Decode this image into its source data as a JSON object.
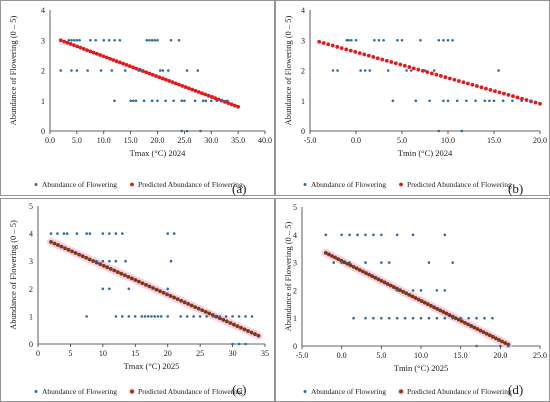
{
  "chart_data": [
    {
      "type": "scatter",
      "panel_label": "(a)",
      "xlabel": "Tmax (°C) 2024",
      "ylabel": "Abundance of Flowering (0 – 5)",
      "xlim": [
        0,
        40
      ],
      "ylim": [
        0,
        4
      ],
      "xticks": [
        "0.0",
        "5.0",
        "10.0",
        "15.0",
        "20.0",
        "25.0",
        "30.0",
        "35.0",
        "40.0"
      ],
      "yticks": [
        "0",
        "1",
        "2",
        "3",
        "4"
      ],
      "legend": [
        "Abundance of Flowering",
        "Predicted Abundance of Flowering"
      ],
      "colors": {
        "observed": "#2e6a9e",
        "predicted": "#e4191c",
        "halo": ""
      },
      "series": [
        {
          "name": "Abundance of Flowering",
          "points": [
            [
              2,
              2
            ],
            [
              3.5,
              3
            ],
            [
              4,
              3
            ],
            [
              4.5,
              3
            ],
            [
              5,
              3
            ],
            [
              5.5,
              3
            ],
            [
              4,
              2
            ],
            [
              5,
              2
            ],
            [
              7,
              2
            ],
            [
              7.5,
              3
            ],
            [
              8.5,
              3
            ],
            [
              9.5,
              2
            ],
            [
              10,
              3
            ],
            [
              11,
              3
            ],
            [
              12,
              3
            ],
            [
              13,
              3
            ],
            [
              11.5,
              2
            ],
            [
              12,
              1
            ],
            [
              14,
              2
            ],
            [
              15,
              1
            ],
            [
              15.5,
              1
            ],
            [
              16,
              1
            ],
            [
              16.5,
              2
            ],
            [
              17,
              2
            ],
            [
              17.5,
              1
            ],
            [
              18,
              3
            ],
            [
              18.5,
              3
            ],
            [
              19,
              3
            ],
            [
              19.5,
              3
            ],
            [
              20,
              3
            ],
            [
              19,
              1
            ],
            [
              20,
              1
            ],
            [
              20.5,
              2
            ],
            [
              21,
              2
            ],
            [
              21.5,
              1
            ],
            [
              22,
              2
            ],
            [
              22.5,
              3
            ],
            [
              23,
              1
            ],
            [
              24,
              3
            ],
            [
              24.5,
              1
            ],
            [
              25,
              1
            ],
            [
              25.5,
              2
            ],
            [
              24.5,
              0
            ],
            [
              25.5,
              0
            ],
            [
              27,
              1
            ],
            [
              27.5,
              2
            ],
            [
              28,
              0
            ],
            [
              28.5,
              1
            ],
            [
              29,
              1
            ],
            [
              30,
              1
            ],
            [
              31,
              1
            ],
            [
              32,
              1
            ],
            [
              33,
              1
            ]
          ]
        },
        {
          "name": "Predicted Abundance of Flowering",
          "x_range": [
            2,
            35
          ],
          "y_range": [
            3.0,
            0.8
          ],
          "n": 55
        }
      ]
    },
    {
      "type": "scatter",
      "panel_label": "(b)",
      "xlabel": "Tmin (°C) 2024",
      "ylabel": "Abundance of Flowering (0 – 5)",
      "xlim": [
        -5,
        20
      ],
      "ylim": [
        0,
        4
      ],
      "xticks": [
        "-5.0",
        "0.0",
        "5.0",
        "10.0",
        "15.0",
        "20.0"
      ],
      "yticks": [
        "0",
        "1",
        "2",
        "3",
        "4"
      ],
      "legend": [
        "Abundance of Flowering",
        "Predicted Abundance of Flowering"
      ],
      "colors": {
        "observed": "#2e6a9e",
        "predicted": "#e4191c",
        "halo": ""
      },
      "series": [
        {
          "name": "Abundance of Flowering",
          "points": [
            [
              -2.5,
              2
            ],
            [
              -2,
              2
            ],
            [
              -1,
              3
            ],
            [
              -0.8,
              3
            ],
            [
              -0.5,
              3
            ],
            [
              0,
              3
            ],
            [
              0.5,
              2
            ],
            [
              1,
              2
            ],
            [
              1.5,
              2
            ],
            [
              2,
              3
            ],
            [
              2.5,
              3
            ],
            [
              3,
              3
            ],
            [
              3.5,
              2
            ],
            [
              4,
              1
            ],
            [
              4.5,
              3
            ],
            [
              5,
              3
            ],
            [
              5.5,
              2
            ],
            [
              6,
              2
            ],
            [
              6.5,
              1
            ],
            [
              7,
              3
            ],
            [
              7.5,
              2
            ],
            [
              8,
              1
            ],
            [
              8.5,
              2
            ],
            [
              9,
              3
            ],
            [
              9.5,
              3
            ],
            [
              10,
              3
            ],
            [
              10.5,
              3
            ],
            [
              9,
              0
            ],
            [
              9.5,
              1
            ],
            [
              10,
              1
            ],
            [
              11,
              1
            ],
            [
              11.5,
              0
            ],
            [
              12,
              1
            ],
            [
              13,
              1
            ],
            [
              14,
              1
            ],
            [
              14.5,
              1
            ],
            [
              15,
              1
            ],
            [
              15.5,
              2
            ],
            [
              16,
              1
            ],
            [
              17,
              1
            ],
            [
              18,
              1
            ],
            [
              19,
              1
            ]
          ]
        },
        {
          "name": "Predicted Abundance of Flowering",
          "x_range": [
            -4,
            20
          ],
          "y_range": [
            2.95,
            0.9
          ],
          "n": 50
        }
      ]
    },
    {
      "type": "scatter",
      "panel_label": "(c)",
      "xlabel": "Tmax (°C) 2025",
      "ylabel": "Abundance of Flowering (0 – 5)",
      "xlim": [
        0,
        35
      ],
      "ylim": [
        0,
        5
      ],
      "xticks": [
        "0",
        "5",
        "10",
        "15",
        "20",
        "25",
        "30",
        "35"
      ],
      "yticks": [
        "0",
        "1",
        "2",
        "3",
        "4",
        "5"
      ],
      "legend": [
        "Abundance of Flowering",
        "Predicted Abundance of Flowering"
      ],
      "colors": {
        "observed": "#2e6a9e",
        "predicted": "#7b3a0f",
        "halo": "#f6c9e6"
      },
      "series": [
        {
          "name": "Abundance of Flowering",
          "points": [
            [
              2,
              4
            ],
            [
              3,
              4
            ],
            [
              4,
              4
            ],
            [
              4.5,
              4
            ],
            [
              6,
              4
            ],
            [
              7.5,
              4
            ],
            [
              8,
              4
            ],
            [
              10,
              4
            ],
            [
              11,
              4
            ],
            [
              12,
              4
            ],
            [
              13,
              4
            ],
            [
              9,
              3
            ],
            [
              10,
              3
            ],
            [
              11,
              3
            ],
            [
              12,
              3
            ],
            [
              13.5,
              3
            ],
            [
              10,
              2
            ],
            [
              11,
              2
            ],
            [
              14,
              2
            ],
            [
              7.5,
              1
            ],
            [
              12,
              1
            ],
            [
              13,
              1
            ],
            [
              14,
              1
            ],
            [
              15,
              1
            ],
            [
              16,
              1
            ],
            [
              16.5,
              1
            ],
            [
              17,
              1
            ],
            [
              17.5,
              1
            ],
            [
              18,
              1
            ],
            [
              18.5,
              1
            ],
            [
              19,
              1
            ],
            [
              20,
              1
            ],
            [
              20,
              2
            ],
            [
              20,
              4
            ],
            [
              21,
              4
            ],
            [
              20.5,
              3
            ],
            [
              22,
              1
            ],
            [
              23,
              1
            ],
            [
              24,
              1
            ],
            [
              25,
              1
            ],
            [
              26,
              1
            ],
            [
              27,
              1
            ],
            [
              28,
              1
            ],
            [
              29,
              1
            ],
            [
              30,
              1
            ],
            [
              31,
              1
            ],
            [
              32,
              1
            ],
            [
              33,
              1
            ],
            [
              30,
              0
            ],
            [
              31,
              0
            ],
            [
              32,
              0
            ]
          ]
        },
        {
          "name": "Predicted Abundance of Flowering",
          "x_range": [
            2,
            34
          ],
          "y_range": [
            3.7,
            0.3
          ],
          "n": 60
        }
      ]
    },
    {
      "type": "scatter",
      "panel_label": "(d)",
      "xlabel": "Tmin (°C) 2025",
      "ylabel": "Abundance of Flowering (0 – 5)",
      "xlim": [
        -5,
        25
      ],
      "ylim": [
        0,
        5
      ],
      "xticks": [
        "-5.0",
        "0.0",
        "5.0",
        "10.0",
        "15.0",
        "20.0",
        "25.0"
      ],
      "yticks": [
        "0",
        "1",
        "2",
        "3",
        "4",
        "5"
      ],
      "legend": [
        "Abundance of Flowering",
        "Predicted Abundance of Flowering"
      ],
      "colors": {
        "observed": "#2e6a9e",
        "predicted": "#7b3a0f",
        "halo": "#f6c9e6"
      },
      "series": [
        {
          "name": "Abundance of Flowering",
          "points": [
            [
              -2,
              4
            ],
            [
              0,
              4
            ],
            [
              1,
              4
            ],
            [
              2,
              4
            ],
            [
              3,
              4
            ],
            [
              4,
              4
            ],
            [
              5,
              4
            ],
            [
              7,
              4
            ],
            [
              9,
              4
            ],
            [
              13,
              4
            ],
            [
              -1,
              3
            ],
            [
              0,
              3
            ],
            [
              1,
              3
            ],
            [
              3,
              3
            ],
            [
              5,
              3
            ],
            [
              6,
              3
            ],
            [
              1.5,
              1
            ],
            [
              3,
              1
            ],
            [
              4,
              1
            ],
            [
              5,
              1
            ],
            [
              6,
              1
            ],
            [
              7,
              1
            ],
            [
              8,
              1
            ],
            [
              9,
              1
            ],
            [
              10,
              1
            ],
            [
              11,
              1
            ],
            [
              12,
              1
            ],
            [
              13,
              1
            ],
            [
              14,
              1
            ],
            [
              15,
              1
            ],
            [
              16,
              1
            ],
            [
              17,
              1
            ],
            [
              18,
              1
            ],
            [
              19,
              1
            ],
            [
              7,
              2
            ],
            [
              9,
              2
            ],
            [
              10,
              2
            ],
            [
              12,
              2
            ],
            [
              13,
              2
            ],
            [
              14,
              3
            ],
            [
              17,
              0
            ],
            [
              20,
              0
            ],
            [
              21,
              0
            ],
            [
              11,
              3
            ]
          ]
        },
        {
          "name": "Predicted Abundance of Flowering",
          "x_range": [
            -2,
            21
          ],
          "y_range": [
            3.35,
            0.05
          ],
          "n": 60
        }
      ]
    }
  ]
}
